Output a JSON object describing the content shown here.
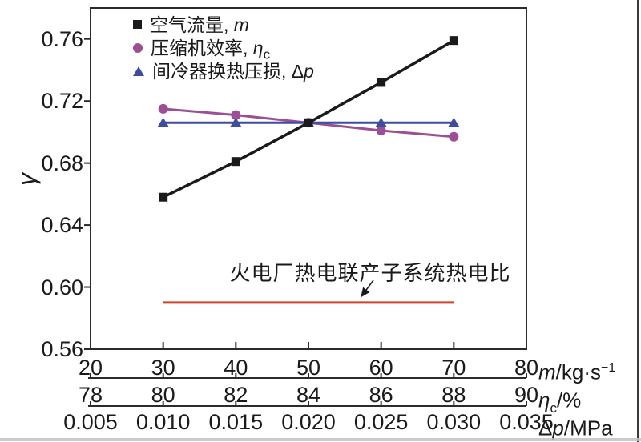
{
  "y_axis": {
    "label": "γ",
    "ticks": [
      "0.76",
      "0.72",
      "0.68",
      "0.64",
      "0.60",
      "0.56"
    ]
  },
  "x_axes": [
    {
      "name": "m",
      "ticks": [
        "20",
        "30",
        "40",
        "50",
        "60",
        "70",
        "80"
      ],
      "range": [
        20,
        80
      ],
      "unit_prefix_plain": "",
      "unit_prefix_italic": "m",
      "unit_prefix_sub": "",
      "unit_rest": "/kg·s",
      "unit_sup": "−1"
    },
    {
      "name": "eta_c",
      "ticks": [
        "78",
        "80",
        "82",
        "84",
        "86",
        "88",
        "90"
      ],
      "range": [
        78,
        90
      ],
      "unit_prefix_plain": "",
      "unit_prefix_italic": "η",
      "unit_prefix_sub": "c",
      "unit_rest": "/%",
      "unit_sup": ""
    },
    {
      "name": "delta_p",
      "ticks": [
        "0.005",
        "0.010",
        "0.015",
        "0.020",
        "0.025",
        "0.030",
        "0.035"
      ],
      "range": [
        0.005,
        0.035
      ],
      "unit_prefix_plain": "Δ",
      "unit_prefix_italic": "p",
      "unit_prefix_sub": "",
      "unit_rest": "/MPa",
      "unit_sup": ""
    }
  ],
  "legend": {
    "items": [
      {
        "marker": "square",
        "color": "#1a1a1a",
        "label": "空气流量, ",
        "symbol_plain": "",
        "symbol_italic": "m",
        "symbol_sub": ""
      },
      {
        "marker": "circle",
        "color": "#9d4f95",
        "label": "压缩机效率, ",
        "symbol_plain": "",
        "symbol_italic": "η",
        "symbol_sub": "c"
      },
      {
        "marker": "triangle",
        "color": "#3f4da0",
        "label": "间冷器换热压损, ",
        "symbol_plain": "Δ",
        "symbol_italic": "p",
        "symbol_sub": ""
      }
    ]
  },
  "annotation": {
    "text": "火电厂热电联产子系统热电比"
  },
  "chart_data": {
    "type": "line",
    "title": "",
    "ylabel": "γ",
    "ylim": [
      0.56,
      0.78
    ],
    "grid": false,
    "legend_position": "top-left-inside",
    "series": [
      {
        "name": "空气流量, m",
        "axis": "m",
        "marker": "square",
        "color": "#1a1a1a",
        "x": [
          30,
          40,
          50,
          60,
          70
        ],
        "y": [
          0.658,
          0.681,
          0.706,
          0.732,
          0.759
        ]
      },
      {
        "name": "压缩机效率, ηc",
        "axis": "eta_c",
        "marker": "circle",
        "color": "#9d4f95",
        "x": [
          80,
          82,
          84,
          86,
          88
        ],
        "y": [
          0.715,
          0.711,
          0.706,
          0.701,
          0.697
        ]
      },
      {
        "name": "间冷器换热压损, Δp",
        "axis": "delta_p",
        "marker": "triangle",
        "color": "#3f4da0",
        "x": [
          0.01,
          0.015,
          0.02,
          0.025,
          0.03
        ],
        "y": [
          0.706,
          0.706,
          0.706,
          0.706,
          0.706
        ]
      }
    ],
    "reference_line": {
      "label": "火电厂热电联产子系统热电比",
      "y": 0.59,
      "x_start_m": 30,
      "x_end_m": 70,
      "color": "#c9452d"
    }
  }
}
